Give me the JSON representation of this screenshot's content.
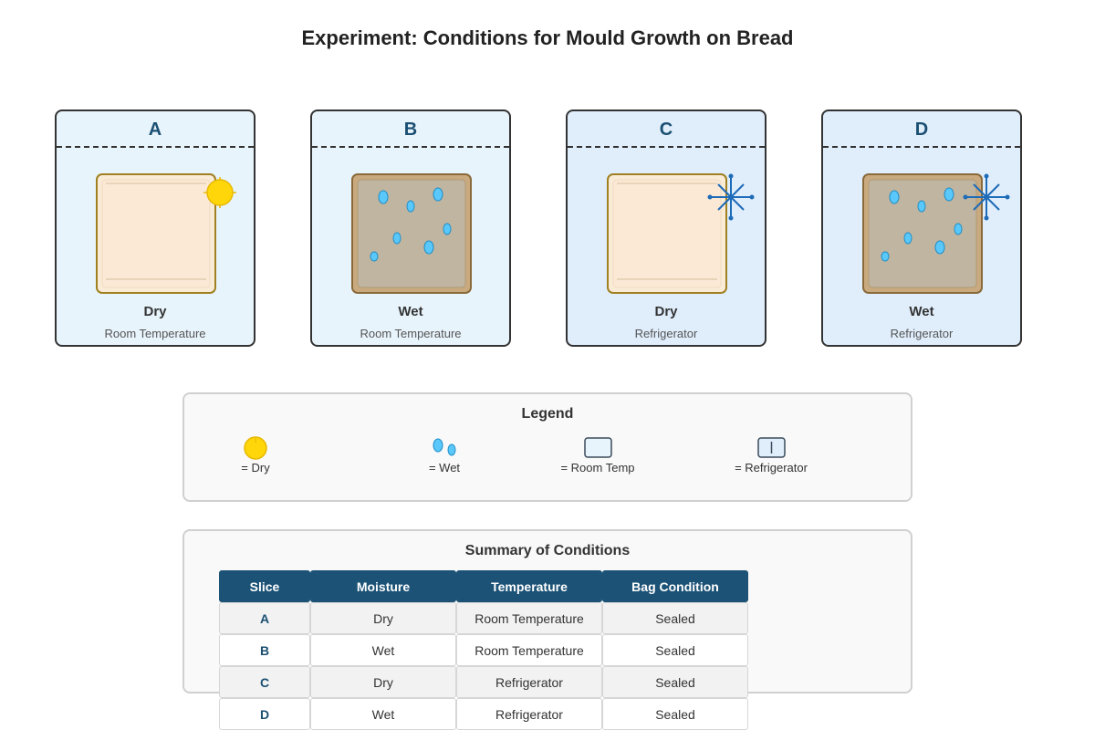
{
  "title": "Experiment: Conditions for Mould Growth on Bread",
  "colors": {
    "header_bg": "#1b5276",
    "letter": "#1b4f72",
    "sun": "#ffd60a",
    "droplet": "#5ac8fa",
    "snowflake": "#1e6bb8",
    "dry_bread": "#faebd7",
    "wet_bread": "#c0b5a0"
  },
  "cards": [
    {
      "letter": "A",
      "moisture": "Dry",
      "temperature": "Room Temperature",
      "moisture_icon": "sun-icon",
      "temp_icon": "none"
    },
    {
      "letter": "B",
      "moisture": "Wet",
      "temperature": "Room Temperature",
      "moisture_icon": "droplets-icon",
      "temp_icon": "none"
    },
    {
      "letter": "C",
      "moisture": "Dry",
      "temperature": "Refrigerator",
      "moisture_icon": "none",
      "temp_icon": "snowflake-icon"
    },
    {
      "letter": "D",
      "moisture": "Wet",
      "temperature": "Refrigerator",
      "moisture_icon": "droplets-icon",
      "temp_icon": "snowflake-icon"
    }
  ],
  "legend": {
    "title": "Legend",
    "items": [
      {
        "icon": "sun-icon",
        "label": "= Dry"
      },
      {
        "icon": "droplets-icon",
        "label": "= Wet"
      },
      {
        "icon": "room-temp-box-icon",
        "label": "= Room Temp"
      },
      {
        "icon": "refrigerator-box-icon",
        "label": "= Refrigerator"
      }
    ]
  },
  "summary": {
    "title": "Summary of Conditions",
    "headers": [
      "Slice",
      "Moisture",
      "Temperature",
      "Bag Condition"
    ],
    "rows": [
      [
        "A",
        "Dry",
        "Room Temperature",
        "Sealed"
      ],
      [
        "B",
        "Wet",
        "Room Temperature",
        "Sealed"
      ],
      [
        "C",
        "Dry",
        "Refrigerator",
        "Sealed"
      ],
      [
        "D",
        "Wet",
        "Refrigerator",
        "Sealed"
      ]
    ]
  }
}
